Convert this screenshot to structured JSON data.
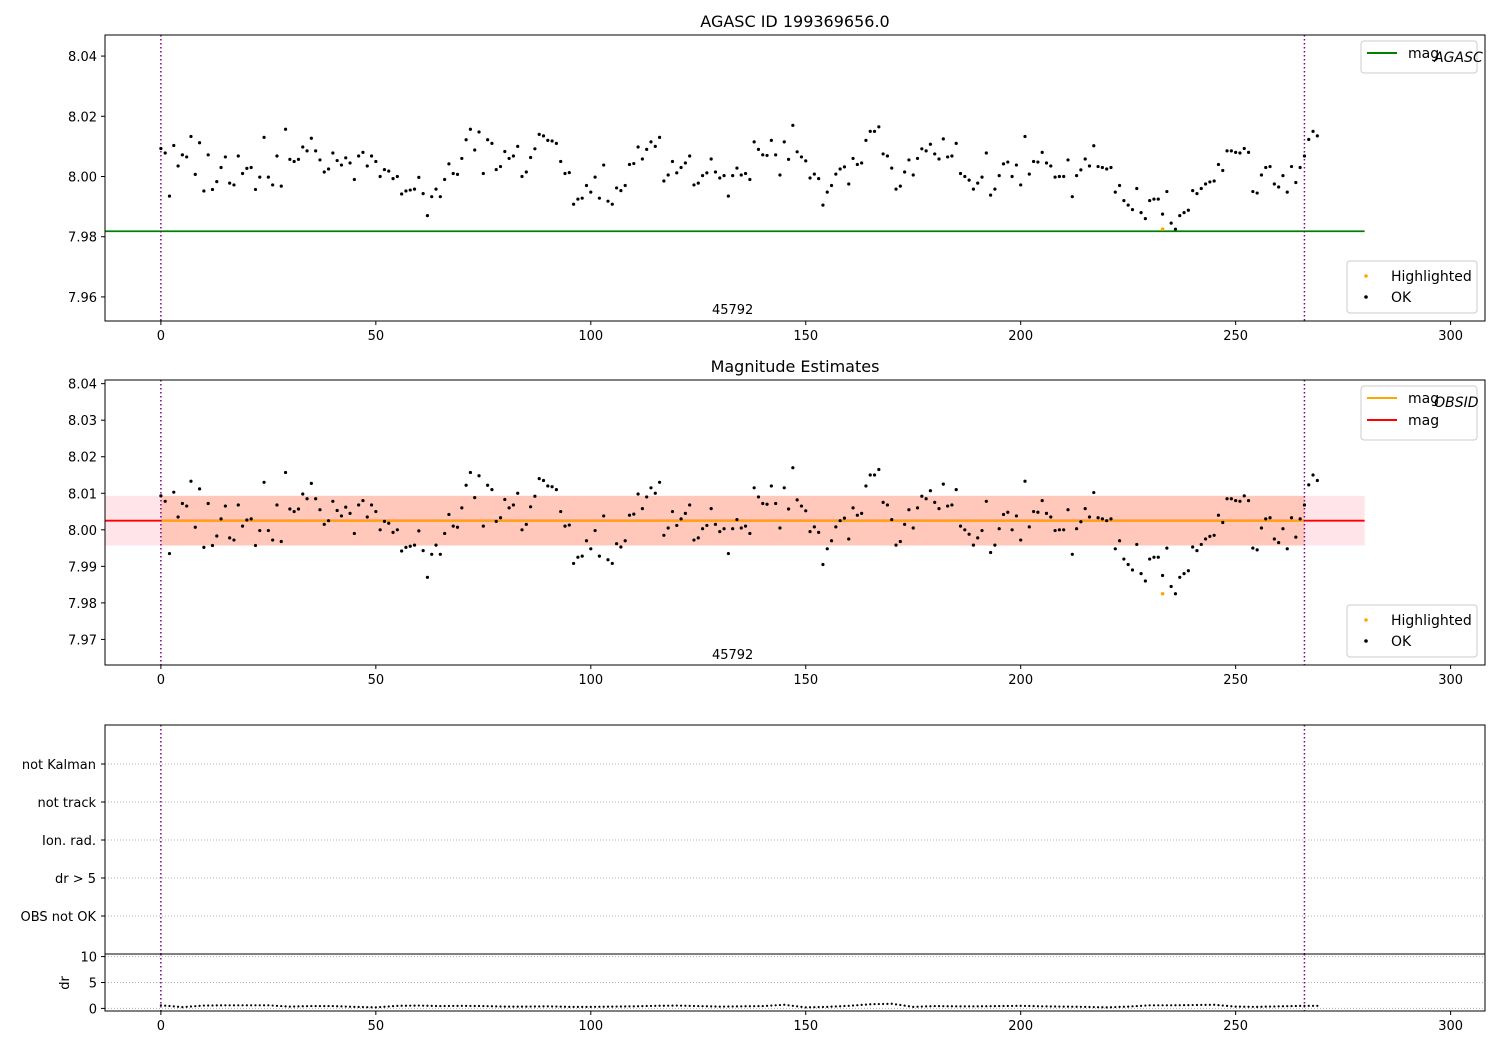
{
  "chart_data": [
    {
      "type": "scatter",
      "title": "AGASC ID 199369656.0",
      "xlim": [
        -13,
        308
      ],
      "ylim": [
        7.952,
        8.047
      ],
      "xticks": [
        0,
        50,
        100,
        150,
        200,
        250,
        300
      ],
      "yticks": [
        7.96,
        7.98,
        8.0,
        8.02,
        8.04
      ],
      "ytick_labels": [
        "7.96",
        "7.98",
        "8.00",
        "8.02",
        "8.04"
      ],
      "obsid_annotation": {
        "text": "45792",
        "x": 133,
        "y": 7.956
      },
      "obs_boundaries": [
        0,
        266
      ],
      "reference_lines": [
        {
          "name": "mag",
          "subscript": "AGASC",
          "value": 7.9818,
          "x_range": [
            -13,
            280
          ],
          "color": "#008000"
        }
      ],
      "legend_upper": {
        "placement": "upper-right",
        "entries": [
          {
            "label": "mag",
            "subscript": "AGASC",
            "color": "#008000"
          }
        ]
      },
      "legend_lower": {
        "placement": "lower-right",
        "entries": [
          {
            "label": "Highlighted",
            "color": "#ffa500"
          },
          {
            "label": "OK",
            "color": "#000000"
          }
        ]
      },
      "highlighted": {
        "name": "Highlighted",
        "x": [
          233
        ],
        "y": [
          7.9825
        ]
      }
    },
    {
      "type": "scatter",
      "title": "Magnitude Estimates",
      "xlim": [
        -13,
        308
      ],
      "ylim": [
        7.963,
        8.041
      ],
      "xticks": [
        0,
        50,
        100,
        150,
        200,
        250,
        300
      ],
      "yticks": [
        7.97,
        7.98,
        7.99,
        8.0,
        8.01,
        8.02,
        8.03,
        8.04
      ],
      "ytick_labels": [
        "7.97",
        "7.98",
        "7.99",
        "8.00",
        "8.01",
        "8.02",
        "8.03",
        "8.04"
      ],
      "obsid_annotation": {
        "text": "45792",
        "x": 133,
        "y": 7.966
      },
      "obs_boundaries": [
        0,
        266
      ],
      "bands": [
        {
          "x_range": [
            -13,
            280
          ],
          "y_range": [
            7.9957,
            8.0093
          ],
          "color": "#ffc0cb"
        },
        {
          "x_range": [
            0,
            266
          ],
          "y_range": [
            7.9957,
            8.0093
          ],
          "color": "#ffa07a"
        }
      ],
      "reference_lines": [
        {
          "name": "mag",
          "value": 8.0025,
          "x_range": [
            -13,
            280
          ],
          "color": "#ff0000"
        },
        {
          "name": "mag",
          "subscript": "OBSID",
          "value": 8.0025,
          "x_range": [
            0,
            266
          ],
          "color": "#ffa500"
        }
      ],
      "legend_upper": {
        "placement": "upper-right",
        "entries": [
          {
            "label": "mag",
            "subscript": "OBSID",
            "color": "#ffa500"
          },
          {
            "label": "mag",
            "color": "#ff0000"
          }
        ]
      },
      "legend_lower": {
        "placement": "lower-right",
        "entries": [
          {
            "label": "Highlighted",
            "color": "#ffa500"
          },
          {
            "label": "OK",
            "color": "#000000"
          }
        ]
      },
      "highlighted": {
        "name": "Highlighted",
        "x": [
          233
        ],
        "y": [
          7.9825
        ]
      }
    },
    {
      "type": "scatter",
      "title": "",
      "xlim": [
        -13,
        308
      ],
      "flag_labels": [
        "OBS not OK",
        "dr > 5",
        "Ion. rad.",
        "not track",
        "not Kalman"
      ],
      "flag_points": [],
      "obs_boundaries": [
        0,
        266
      ]
    },
    {
      "type": "scatter",
      "title": "",
      "xlim": [
        -13,
        308
      ],
      "xticks": [
        0,
        50,
        100,
        150,
        200,
        250,
        300
      ],
      "ylim": [
        -0.5,
        10.5
      ],
      "yticks": [
        0,
        5,
        10
      ],
      "ytick_labels": [
        "0",
        "5",
        "10"
      ],
      "ylabel": "dr",
      "obs_boundaries": [
        0,
        266
      ],
      "dr_samples": [
        [
          0,
          0.6
        ],
        [
          5,
          0.25
        ],
        [
          10,
          0.55
        ],
        [
          15,
          0.6
        ],
        [
          20,
          0.6
        ],
        [
          25,
          0.6
        ],
        [
          30,
          0.35
        ],
        [
          35,
          0.45
        ],
        [
          40,
          0.45
        ],
        [
          45,
          0.3
        ],
        [
          50,
          0.2
        ],
        [
          55,
          0.5
        ],
        [
          60,
          0.55
        ],
        [
          65,
          0.45
        ],
        [
          70,
          0.5
        ],
        [
          75,
          0.45
        ],
        [
          80,
          0.35
        ],
        [
          85,
          0.35
        ],
        [
          90,
          0.4
        ],
        [
          95,
          0.3
        ],
        [
          100,
          0.3
        ],
        [
          105,
          0.35
        ],
        [
          110,
          0.4
        ],
        [
          115,
          0.5
        ],
        [
          120,
          0.55
        ],
        [
          125,
          0.45
        ],
        [
          130,
          0.35
        ],
        [
          135,
          0.4
        ],
        [
          140,
          0.45
        ],
        [
          145,
          0.7
        ],
        [
          150,
          0.2
        ],
        [
          155,
          0.3
        ],
        [
          160,
          0.5
        ],
        [
          165,
          0.8
        ],
        [
          170,
          0.9
        ],
        [
          175,
          0.3
        ],
        [
          180,
          0.45
        ],
        [
          185,
          0.4
        ],
        [
          190,
          0.4
        ],
        [
          195,
          0.45
        ],
        [
          200,
          0.5
        ],
        [
          205,
          0.4
        ],
        [
          210,
          0.35
        ],
        [
          215,
          0.3
        ],
        [
          220,
          0.2
        ],
        [
          225,
          0.35
        ],
        [
          230,
          0.6
        ],
        [
          235,
          0.6
        ],
        [
          240,
          0.65
        ],
        [
          245,
          0.7
        ],
        [
          250,
          0.35
        ],
        [
          255,
          0.3
        ],
        [
          260,
          0.4
        ],
        [
          266,
          0.5
        ]
      ]
    }
  ],
  "series_data": {
    "name": "OK",
    "x_start": 0,
    "y": [
      8.0093,
      8.0078,
      7.9935,
      8.0103,
      8.0035,
      8.0072,
      8.0065,
      8.0133,
      8.0007,
      8.0112,
      7.9952,
      8.0072,
      7.9957,
      7.9983,
      8.003,
      8.0065,
      7.9978,
      7.9972,
      8.0068,
      8.001,
      8.0027,
      8.003,
      7.9957,
      7.9998,
      8.013,
      7.9998,
      7.9972,
      8.0068,
      7.9968,
      8.0157,
      8.0057,
      8.005,
      8.0057,
      8.0098,
      8.0085,
      8.0127,
      8.0085,
      8.0055,
      8.0015,
      8.0025,
      8.0078,
      8.0053,
      8.0038,
      8.0062,
      8.0045,
      7.999,
      8.0068,
      8.008,
      8.0035,
      8.0068,
      8.005,
      8.0,
      8.0023,
      8.0018,
      7.9993,
      8.0,
      7.9942,
      7.9952,
      7.9955,
      7.9958,
      7.9997,
      7.9943,
      7.987,
      7.9933,
      7.9958,
      7.9933,
      7.999,
      8.0042,
      8.001,
      8.0007,
      8.006,
      8.0122,
      8.0157,
      8.0088,
      8.0148,
      8.001,
      8.0122,
      8.011,
      8.0023,
      8.0033,
      8.0083,
      8.006,
      8.0068,
      8.01,
      8.0,
      8.0015,
      8.0063,
      8.0092,
      8.014,
      8.0135,
      8.012,
      8.0118,
      8.011,
      8.005,
      8.001,
      8.0013,
      7.9908,
      7.9925,
      7.9928,
      7.997,
      7.9948,
      7.9998,
      7.9928,
      8.0038,
      7.9918,
      7.9908,
      7.9962,
      7.9953,
      7.997,
      8.004,
      8.0043,
      8.0098,
      8.0058,
      8.009,
      8.0115,
      8.01,
      8.013,
      7.9985,
      8.0005,
      8.005,
      8.0012,
      8.003,
      8.0045,
      8.0068,
      7.9972,
      7.9978,
      8.0003,
      8.0012,
      8.0058,
      8.0015,
      7.9995,
      8.0003,
      7.9935,
      8.0003,
      8.0028,
      8.0005,
      8.001,
      7.999,
      8.0115,
      8.009,
      8.0072,
      8.007,
      8.012,
      8.0072,
      8.0005,
      8.0115,
      8.0057,
      8.017,
      8.0082,
      8.0065,
      8.0052,
      7.9995,
      8.0008,
      7.9993,
      7.9905,
      7.9948,
      7.997,
      8.0008,
      8.0025,
      8.0032,
      7.9975,
      8.006,
      8.004,
      8.0045,
      8.012,
      8.015,
      8.015,
      8.0165,
      8.0075,
      8.0068,
      8.0028,
      7.9958,
      7.9968,
      8.0015,
      8.0055,
      8.0005,
      8.006,
      8.0092,
      8.0085,
      8.0107,
      8.0075,
      8.0058,
      8.0125,
      8.0065,
      8.0068,
      8.011,
      8.001,
      8.0,
      7.9988,
      7.9958,
      7.9978,
      7.9998,
      8.0078,
      7.9938,
      7.9958,
      8.0003,
      8.0042,
      8.0048,
      8.0,
      8.0038,
      7.9972,
      8.0133,
      8.0008,
      8.005,
      8.0048,
      8.008,
      8.0045,
      8.0035,
      7.9998,
      8.0,
      8.0,
      8.0055,
      7.9933,
      8.0003,
      8.0022,
      8.0058,
      8.0035,
      8.0102,
      8.0033,
      8.003,
      8.0025,
      8.003,
      7.9948,
      7.997,
      7.992,
      7.9905,
      7.989,
      7.996,
      7.988,
      7.986,
      7.992,
      7.9925,
      7.9925,
      7.9875,
      7.995,
      7.9845,
      7.9825,
      7.987,
      7.988,
      7.9888,
      7.9953,
      7.9943,
      7.996,
      7.9975,
      7.9982,
      7.9985,
      8.004,
      8.002,
      8.0085,
      8.0085,
      8.008,
      8.0078,
      8.0093,
      8.008,
      7.995,
      7.9945,
      8.0005,
      8.003,
      8.0033,
      7.9975,
      7.9965,
      8.0003,
      7.9948,
      8.0033,
      7.998,
      8.003,
      8.0068,
      8.0123,
      8.015,
      8.0135
    ]
  }
}
